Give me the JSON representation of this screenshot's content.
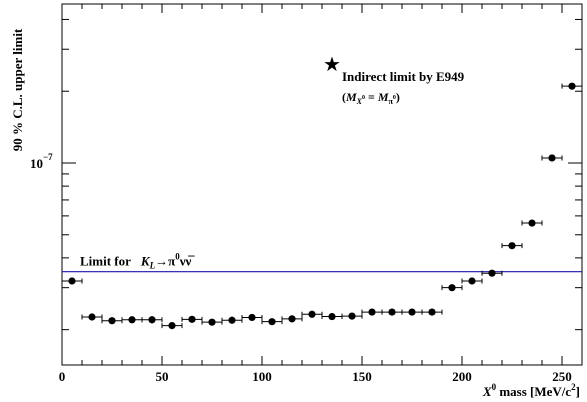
{
  "chart_data": {
    "type": "scatter",
    "ylabel": "90 % C.L. upper limit",
    "xlabel_var": "X",
    "xlabel_sup": "0",
    "xlabel_rest": " mass [MeV/c",
    "xlabel_sup2": "2",
    "xlabel_close": "]",
    "xlim": [
      0,
      260
    ],
    "x_ticks": [
      0,
      50,
      100,
      150,
      200,
      250
    ],
    "y_scale": "log",
    "y_tick_label": {
      "base": "10",
      "exp": "−7"
    },
    "y_tick_value": 1e-07,
    "series": [
      {
        "x": [
          5,
          15,
          25,
          35,
          45,
          55,
          65,
          75,
          85,
          95,
          105,
          115,
          125,
          135,
          145,
          155,
          165,
          175,
          185,
          195,
          205,
          215,
          225,
          235,
          245,
          255
        ],
        "xerr": 5,
        "y": [
          3.2e-08,
          2.26e-08,
          2.18e-08,
          2.2e-08,
          2.2e-08,
          2.08e-08,
          2.21e-08,
          2.15e-08,
          2.19e-08,
          2.25e-08,
          2.16e-08,
          2.22e-08,
          2.32e-08,
          2.27e-08,
          2.28e-08,
          2.37e-08,
          2.37e-08,
          2.37e-08,
          2.37e-08,
          3e-08,
          3.2e-08,
          3.45e-08,
          4.5e-08,
          5.6e-08,
          1.05e-07,
          2.1e-07
        ]
      }
    ],
    "reference_line": {
      "label_prefix": "Limit for",
      "label_K": "K",
      "label_K_sub": "L",
      "label_arrow": "→",
      "label_pi": "π",
      "label_pi_sup": "0",
      "label_nus": "νν",
      "label_nubar": "̅",
      "value": 3.5e-08,
      "color": "#1a1aaa"
    },
    "annotation": {
      "marker": "★",
      "text": "Indirect limit by E949",
      "cond_open": "(",
      "cond_M1": "M",
      "cond_X": "X",
      "cond_X_sup": "0",
      "cond_eq": " = ",
      "cond_M2": "M",
      "cond_pi": "π",
      "cond_pi_sup": "0",
      "cond_close": ")",
      "x": 135,
      "y": 2.6e-07
    }
  }
}
